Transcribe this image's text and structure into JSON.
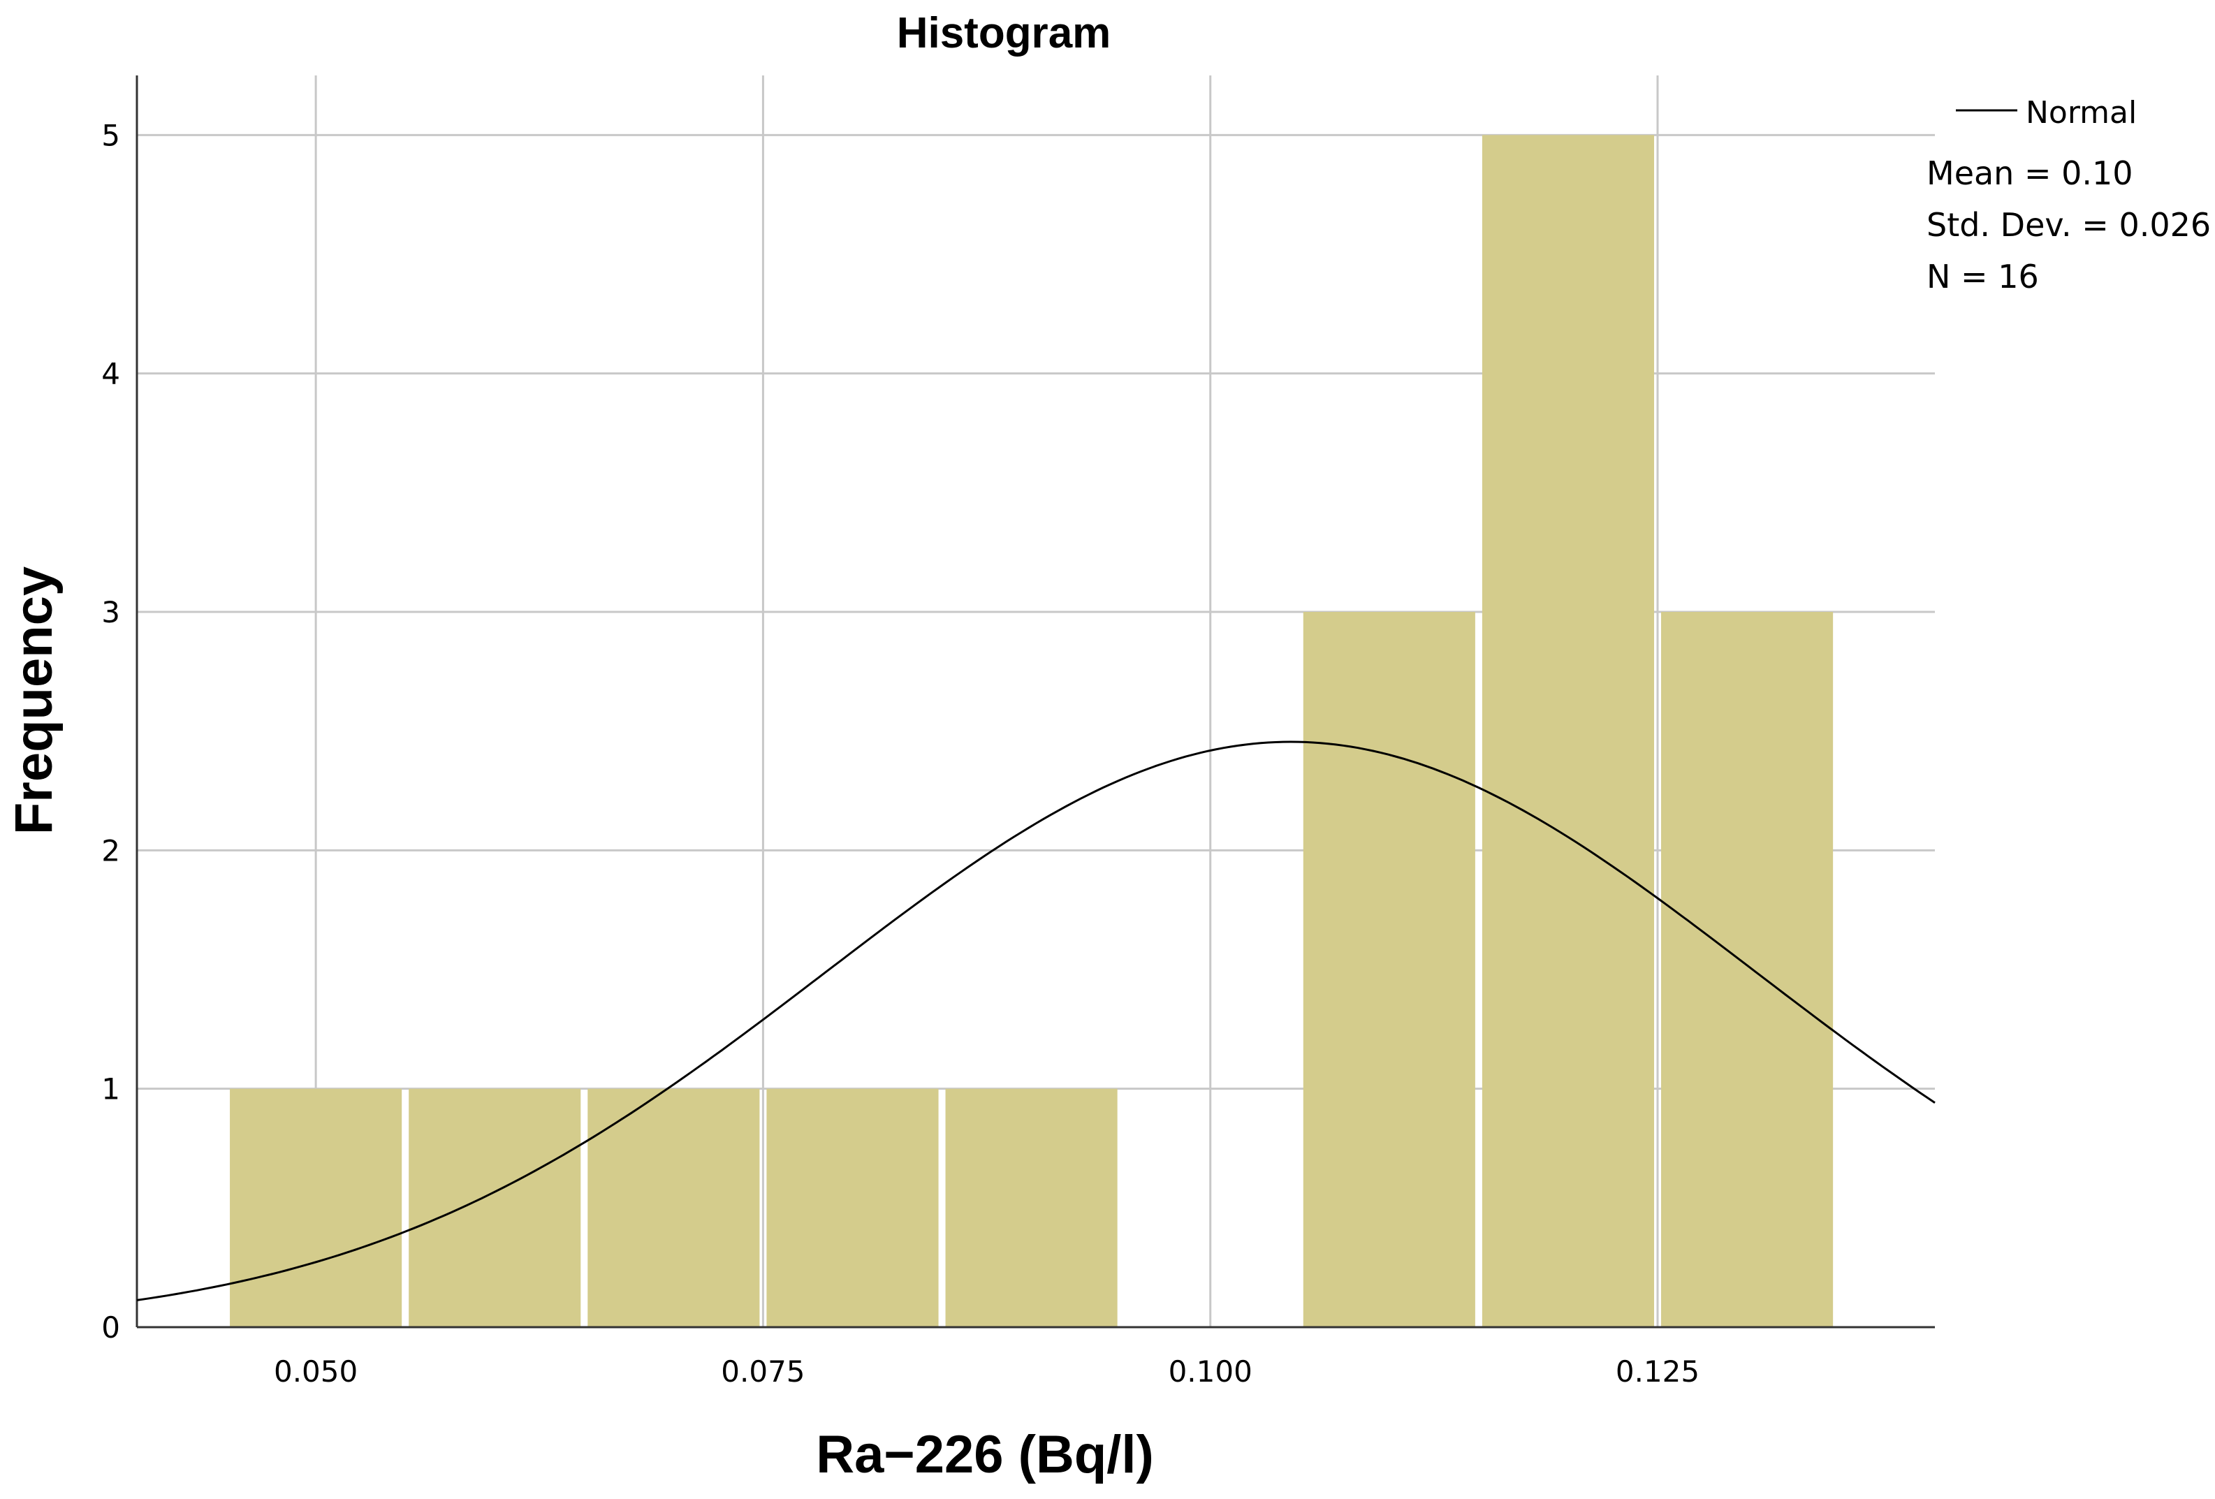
{
  "chart_data": {
    "type": "bar",
    "subtype": "histogram",
    "title": "Histogram",
    "xlabel": "Ra−226 (Bq/l)",
    "ylabel": "Frequency",
    "xlim": [
      0.04,
      0.1405
    ],
    "ylim": [
      0,
      5.25
    ],
    "x_ticks": [
      0.05,
      0.075,
      0.1,
      0.125
    ],
    "x_tick_labels": [
      "0.050",
      "0.075",
      "0.100",
      "0.125"
    ],
    "y_ticks": [
      0,
      1,
      2,
      3,
      4,
      5
    ],
    "y_tick_labels": [
      "0",
      "1",
      "2",
      "3",
      "4",
      "5"
    ],
    "grid": true,
    "bar_color": "#d4cc8c",
    "bins": [
      {
        "start": 0.045,
        "end": 0.055,
        "count": 1
      },
      {
        "start": 0.055,
        "end": 0.065,
        "count": 1
      },
      {
        "start": 0.065,
        "end": 0.075,
        "count": 1
      },
      {
        "start": 0.075,
        "end": 0.085,
        "count": 1
      },
      {
        "start": 0.085,
        "end": 0.095,
        "count": 1
      },
      {
        "start": 0.095,
        "end": 0.105,
        "count": 0
      },
      {
        "start": 0.105,
        "end": 0.115,
        "count": 3
      },
      {
        "start": 0.115,
        "end": 0.125,
        "count": 5
      },
      {
        "start": 0.125,
        "end": 0.135,
        "count": 3
      }
    ],
    "normal_curve": {
      "mean": 0.1045,
      "std": 0.026,
      "n": 16,
      "bin_width": 0.01,
      "color": "#000000"
    },
    "legend": {
      "placement": "top-right",
      "entries": [
        "Normal"
      ]
    },
    "stats": [
      "Mean = 0.10",
      "Std. Dev. = 0.026",
      "N = 16"
    ]
  }
}
